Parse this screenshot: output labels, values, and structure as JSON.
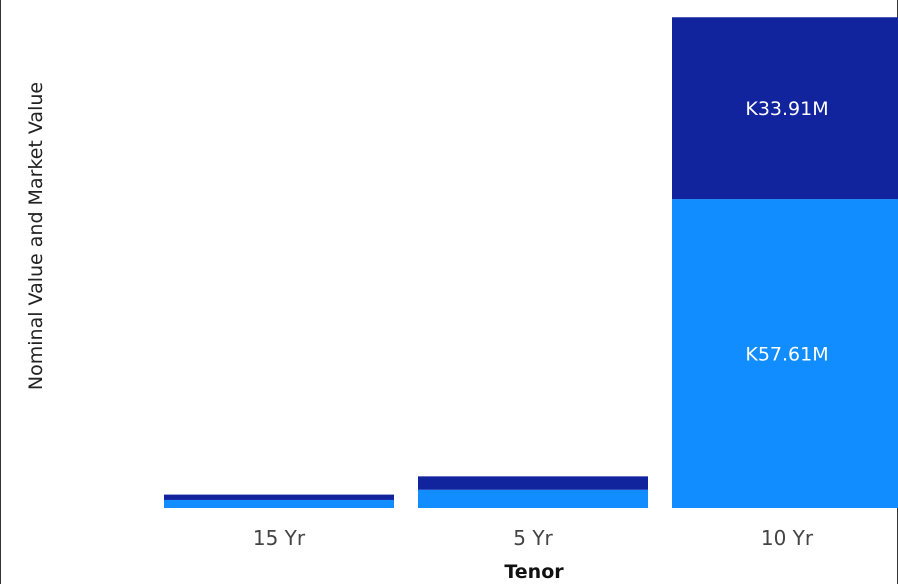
{
  "chart_data": {
    "type": "bar",
    "stacked": true,
    "title": "",
    "xlabel": "Tenor",
    "ylabel": "Nominal Value and Market Value",
    "categories": [
      "15 Yr",
      "5 Yr",
      "10 Yr"
    ],
    "series": [
      {
        "values": [
          1.5,
          3.4,
          57.61
        ],
        "color": "#118DFF",
        "data_labels": [
          "",
          "",
          "K57.61M"
        ]
      },
      {
        "values": [
          1.0,
          2.5,
          33.91
        ],
        "color": "#12239E",
        "data_labels": [
          "",
          "",
          "K33.91M"
        ]
      }
    ],
    "ylim": [
      0,
      92.5
    ],
    "grid": false,
    "legend": "none"
  }
}
